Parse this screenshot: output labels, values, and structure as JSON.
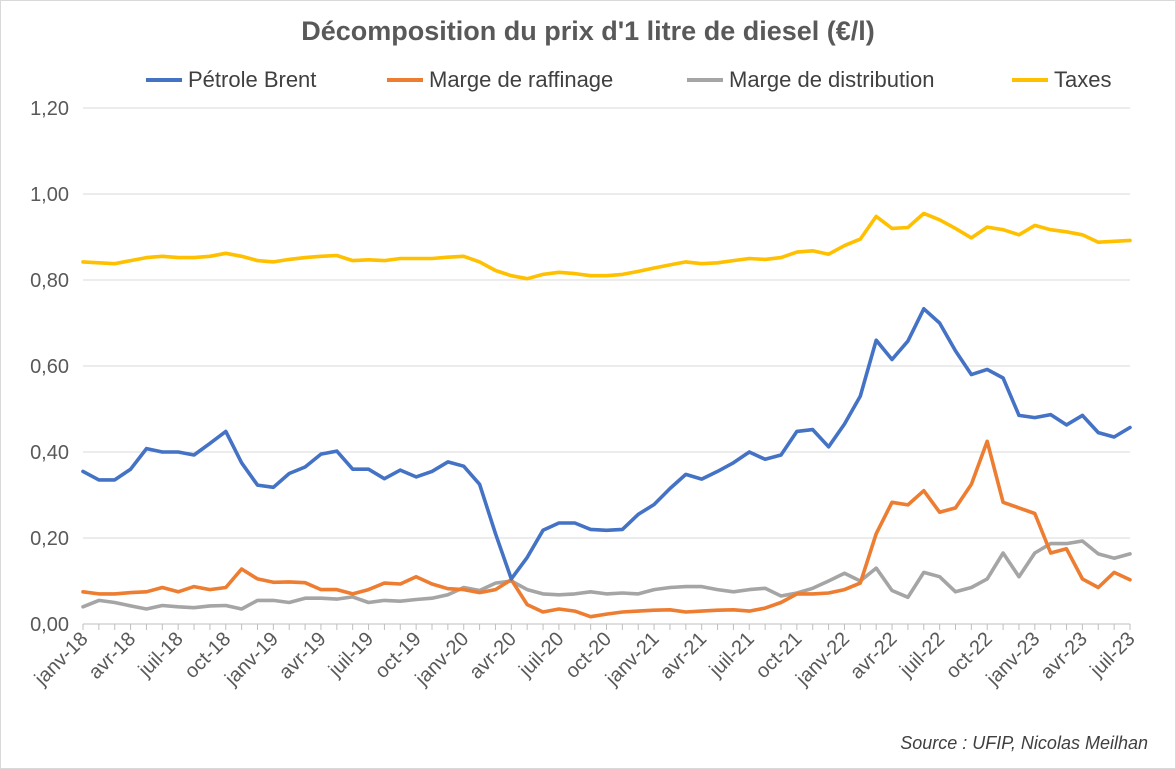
{
  "chart_data": {
    "type": "line",
    "title": "Décomposition du prix d'1 litre de diesel (€/l)",
    "xlabel": "",
    "ylabel": "",
    "ylim": [
      0,
      1.2
    ],
    "yticks": [
      "0,00",
      "0,20",
      "0,40",
      "0,60",
      "0,80",
      "1,00",
      "1,20"
    ],
    "ytick_values": [
      0,
      0.2,
      0.4,
      0.6,
      0.8,
      1.0,
      1.2
    ],
    "xtick_labels": [
      "janv-18",
      "avr-18",
      "juil-18",
      "oct-18",
      "janv-19",
      "avr-19",
      "juil-19",
      "oct-19",
      "janv-20",
      "avr-20",
      "juil-20",
      "oct-20",
      "janv-21",
      "avr-21",
      "juil-21",
      "oct-21",
      "janv-22",
      "avr-22",
      "juil-22",
      "oct-22",
      "janv-23",
      "avr-23",
      "juil-23"
    ],
    "x_start": "janv-18",
    "x_end": "juil-23",
    "grid": "horizontal",
    "legend_position": "top",
    "source": "Source : UFIP, Nicolas Meilhan",
    "series": [
      {
        "name": "Pétrole Brent",
        "color": "#4472C4",
        "values": [
          0.355,
          0.335,
          0.335,
          0.36,
          0.408,
          0.4,
          0.4,
          0.393,
          0.42,
          0.448,
          0.375,
          0.323,
          0.318,
          0.35,
          0.365,
          0.395,
          0.402,
          0.36,
          0.36,
          0.338,
          0.358,
          0.342,
          0.355,
          0.377,
          0.367,
          0.325,
          0.21,
          0.105,
          0.155,
          0.218,
          0.235,
          0.235,
          0.22,
          0.218,
          0.22,
          0.255,
          0.278,
          0.315,
          0.348,
          0.337,
          0.355,
          0.375,
          0.4,
          0.383,
          0.393,
          0.448,
          0.452,
          0.412,
          0.465,
          0.53,
          0.66,
          0.615,
          0.658,
          0.733,
          0.7,
          0.635,
          0.58,
          0.592,
          0.572,
          0.485,
          0.48,
          0.487,
          0.463,
          0.485,
          0.445,
          0.435,
          0.457
        ]
      },
      {
        "name": "Marge de raffinage",
        "color": "#ED7D31",
        "values": [
          0.075,
          0.07,
          0.07,
          0.073,
          0.075,
          0.085,
          0.075,
          0.087,
          0.08,
          0.085,
          0.128,
          0.105,
          0.097,
          0.098,
          0.096,
          0.08,
          0.08,
          0.07,
          0.08,
          0.095,
          0.093,
          0.11,
          0.093,
          0.082,
          0.08,
          0.073,
          0.08,
          0.103,
          0.045,
          0.028,
          0.035,
          0.03,
          0.017,
          0.023,
          0.028,
          0.03,
          0.032,
          0.033,
          0.028,
          0.03,
          0.032,
          0.033,
          0.03,
          0.037,
          0.05,
          0.07,
          0.07,
          0.072,
          0.08,
          0.095,
          0.21,
          0.283,
          0.277,
          0.31,
          0.26,
          0.27,
          0.325,
          0.425,
          0.283,
          0.27,
          0.257,
          0.165,
          0.175,
          0.105,
          0.085,
          0.12,
          0.103
        ]
      },
      {
        "name": "Marge de distribution",
        "color": "#A5A5A5",
        "values": [
          0.04,
          0.055,
          0.05,
          0.042,
          0.035,
          0.043,
          0.04,
          0.038,
          0.042,
          0.043,
          0.035,
          0.055,
          0.055,
          0.05,
          0.06,
          0.06,
          0.058,
          0.063,
          0.05,
          0.055,
          0.053,
          0.057,
          0.06,
          0.068,
          0.085,
          0.078,
          0.095,
          0.1,
          0.08,
          0.07,
          0.068,
          0.07,
          0.075,
          0.07,
          0.072,
          0.07,
          0.08,
          0.085,
          0.087,
          0.087,
          0.08,
          0.075,
          0.08,
          0.083,
          0.065,
          0.072,
          0.083,
          0.1,
          0.118,
          0.1,
          0.13,
          0.078,
          0.062,
          0.12,
          0.11,
          0.075,
          0.085,
          0.105,
          0.165,
          0.11,
          0.165,
          0.187,
          0.187,
          0.193,
          0.163,
          0.153,
          0.163
        ]
      },
      {
        "name": "Taxes",
        "color": "#FFC000",
        "values": [
          0.842,
          0.84,
          0.838,
          0.845,
          0.852,
          0.855,
          0.852,
          0.852,
          0.855,
          0.862,
          0.855,
          0.845,
          0.842,
          0.848,
          0.852,
          0.855,
          0.857,
          0.845,
          0.847,
          0.845,
          0.85,
          0.85,
          0.85,
          0.853,
          0.855,
          0.842,
          0.822,
          0.81,
          0.803,
          0.813,
          0.818,
          0.815,
          0.81,
          0.81,
          0.813,
          0.82,
          0.828,
          0.835,
          0.842,
          0.838,
          0.84,
          0.845,
          0.85,
          0.848,
          0.852,
          0.865,
          0.868,
          0.86,
          0.88,
          0.895,
          0.948,
          0.92,
          0.922,
          0.955,
          0.94,
          0.92,
          0.898,
          0.923,
          0.917,
          0.905,
          0.927,
          0.917,
          0.912,
          0.905,
          0.888,
          0.89,
          0.892
        ]
      }
    ]
  }
}
